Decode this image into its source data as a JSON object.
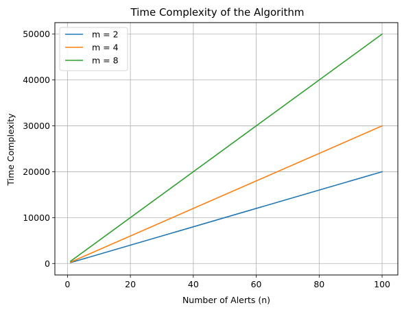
{
  "chart_data": {
    "type": "line",
    "title": "Time Complexity of the Algorithm",
    "xlabel": "Number of Alerts (n)",
    "ylabel": "Time Complexity",
    "xlim": [
      -4,
      105
    ],
    "ylim": [
      -2500,
      52500
    ],
    "xticks": [
      0,
      20,
      40,
      60,
      80,
      100
    ],
    "yticks": [
      0,
      10000,
      20000,
      30000,
      40000,
      50000
    ],
    "x": [
      1,
      100
    ],
    "series": [
      {
        "name": "m = 2",
        "values": [
          200,
          20000
        ],
        "color": "#1f77b4"
      },
      {
        "name": "m = 4",
        "values": [
          300,
          30000
        ],
        "color": "#ff7f0e"
      },
      {
        "name": "m = 8",
        "values": [
          500,
          50000
        ],
        "color": "#2ca02c"
      }
    ],
    "grid": true,
    "legend_position": "upper left"
  }
}
